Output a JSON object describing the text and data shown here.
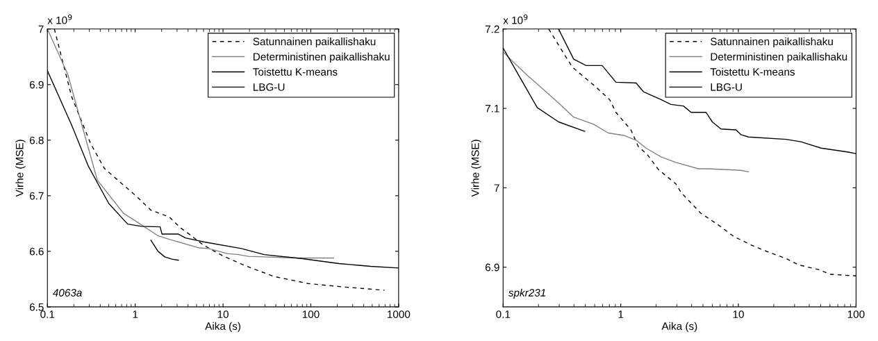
{
  "chart_data": [
    {
      "type": "line",
      "xlabel": "Aika (s)",
      "ylabel": "Virhe (MSE)",
      "log": "x",
      "xlim": [
        0.1,
        1000
      ],
      "xticks": [
        0.1,
        1,
        10,
        100,
        1000
      ],
      "ylim": [
        6.5,
        7
      ],
      "yticks": [
        6.5,
        6.6,
        6.7,
        6.8,
        6.9,
        7
      ],
      "legend": "top right",
      "grid": false,
      "annotations": [
        "x 10$^{9}$",
        "4063a"
      ],
      "series": [
        {
          "name": "Satunnainen paikallishaku",
          "color": "#000000",
          "line_style": "dashed",
          "x": [
            0.12,
            0.189,
            0.31,
            0.446,
            1.05,
            1.51,
            2.43,
            3.3,
            4.2,
            6.0,
            9.9,
            18,
            37.6,
            93,
            232,
            690
          ],
          "values": [
            7.0,
            6.878,
            6.794,
            6.749,
            6.698,
            6.674,
            6.662,
            6.642,
            6.63,
            6.611,
            6.592,
            6.574,
            6.555,
            6.542,
            6.536,
            6.53
          ]
        },
        {
          "name": "Deterministinen paikallishaku",
          "color": "#808080",
          "line_style": "solid",
          "x": [
            0.1,
            0.17,
            0.37,
            0.74,
            0.98,
            1.82,
            2.52,
            5.4,
            6.9,
            11.2,
            15,
            19.5,
            70,
            182
          ],
          "values": [
            7.0,
            6.919,
            6.728,
            6.668,
            6.656,
            6.628,
            6.621,
            6.606,
            6.605,
            6.596,
            6.594,
            6.591,
            6.588,
            6.588
          ]
        },
        {
          "name": "Toistettu K-means",
          "color": "#000000",
          "line_style": "solid",
          "x": [
            0.1,
            0.189,
            0.293,
            0.5,
            0.82,
            1.17,
            1.92,
            2.02,
            3.1,
            3.75,
            6.0,
            16.2,
            29.5,
            78,
            209,
            480,
            1000
          ],
          "values": [
            6.925,
            6.827,
            6.753,
            6.686,
            6.649,
            6.645,
            6.644,
            6.631,
            6.631,
            6.624,
            6.617,
            6.605,
            6.594,
            6.587,
            6.578,
            6.573,
            6.57
          ]
        },
        {
          "name": "LBG-U",
          "color": "#000000",
          "line_style": "solid",
          "x": [
            1.51,
            1.82,
            2.17,
            2.62,
            3.1
          ],
          "values": [
            6.62,
            6.6,
            6.59,
            6.586,
            6.584
          ]
        }
      ]
    },
    {
      "type": "line",
      "xlabel": "Aika (s)",
      "ylabel": "Virhe (MSE)",
      "log": "x",
      "xlim": [
        0.1,
        100
      ],
      "xticks": [
        0.1,
        1,
        10,
        100
      ],
      "ylim": [
        6.85,
        7.2
      ],
      "yticks": [
        6.9,
        7,
        7.1,
        7.2
      ],
      "legend": "top right",
      "grid": false,
      "annotations": [
        "x 10$^{9}$",
        "spkr231"
      ],
      "series": [
        {
          "name": "Satunnainen paikallishaku",
          "color": "#000000",
          "line_style": "dashed",
          "x": [
            0.244,
            0.387,
            0.615,
            0.805,
            0.91,
            1.22,
            1.41,
            1.68,
            2.09,
            2.94,
            3.26,
            4.79,
            6.78,
            9.08,
            12.8,
            18,
            25.4,
            32.4,
            47.9,
            61,
            100
          ],
          "values": [
            7.2,
            7.152,
            7.127,
            7.111,
            7.095,
            7.073,
            7.052,
            7.042,
            7.023,
            7.005,
            6.994,
            6.968,
            6.953,
            6.939,
            6.928,
            6.919,
            6.911,
            6.903,
            6.897,
            6.891,
            6.889
          ]
        },
        {
          "name": "Deterministinen paikallishaku",
          "color": "#808080",
          "line_style": "solid",
          "x": [
            0.1,
            0.157,
            0.295,
            0.398,
            0.587,
            0.785,
            1.06,
            1.35,
            1.64,
            2.2,
            2.94,
            4.57,
            5.56,
            10.5,
            12.2
          ],
          "values": [
            7.171,
            7.143,
            7.107,
            7.089,
            7.08,
            7.069,
            7.066,
            7.06,
            7.05,
            7.039,
            7.032,
            7.024,
            7.024,
            7.022,
            7.02
          ]
        },
        {
          "name": "Toistettu K-means",
          "color": "#000000",
          "line_style": "solid",
          "x": [
            0.296,
            0.398,
            0.508,
            0.695,
            0.91,
            1.35,
            1.56,
            2.2,
            2.67,
            3.41,
            3.96,
            5.31,
            6.0,
            7.11,
            9.55,
            10.5,
            12.2,
            25.4,
            34,
            50.4,
            86,
            100
          ],
          "values": [
            7.2,
            7.162,
            7.154,
            7.154,
            7.133,
            7.132,
            7.121,
            7.111,
            7.105,
            7.103,
            7.095,
            7.095,
            7.083,
            7.074,
            7.073,
            7.067,
            7.064,
            7.061,
            7.058,
            7.05,
            7.045,
            7.043
          ]
        },
        {
          "name": "LBG-U",
          "color": "#000000",
          "line_style": "solid",
          "x": [
            0.1,
            0.195,
            0.296,
            0.494
          ],
          "values": [
            7.176,
            7.101,
            7.083,
            7.071
          ]
        }
      ]
    }
  ]
}
